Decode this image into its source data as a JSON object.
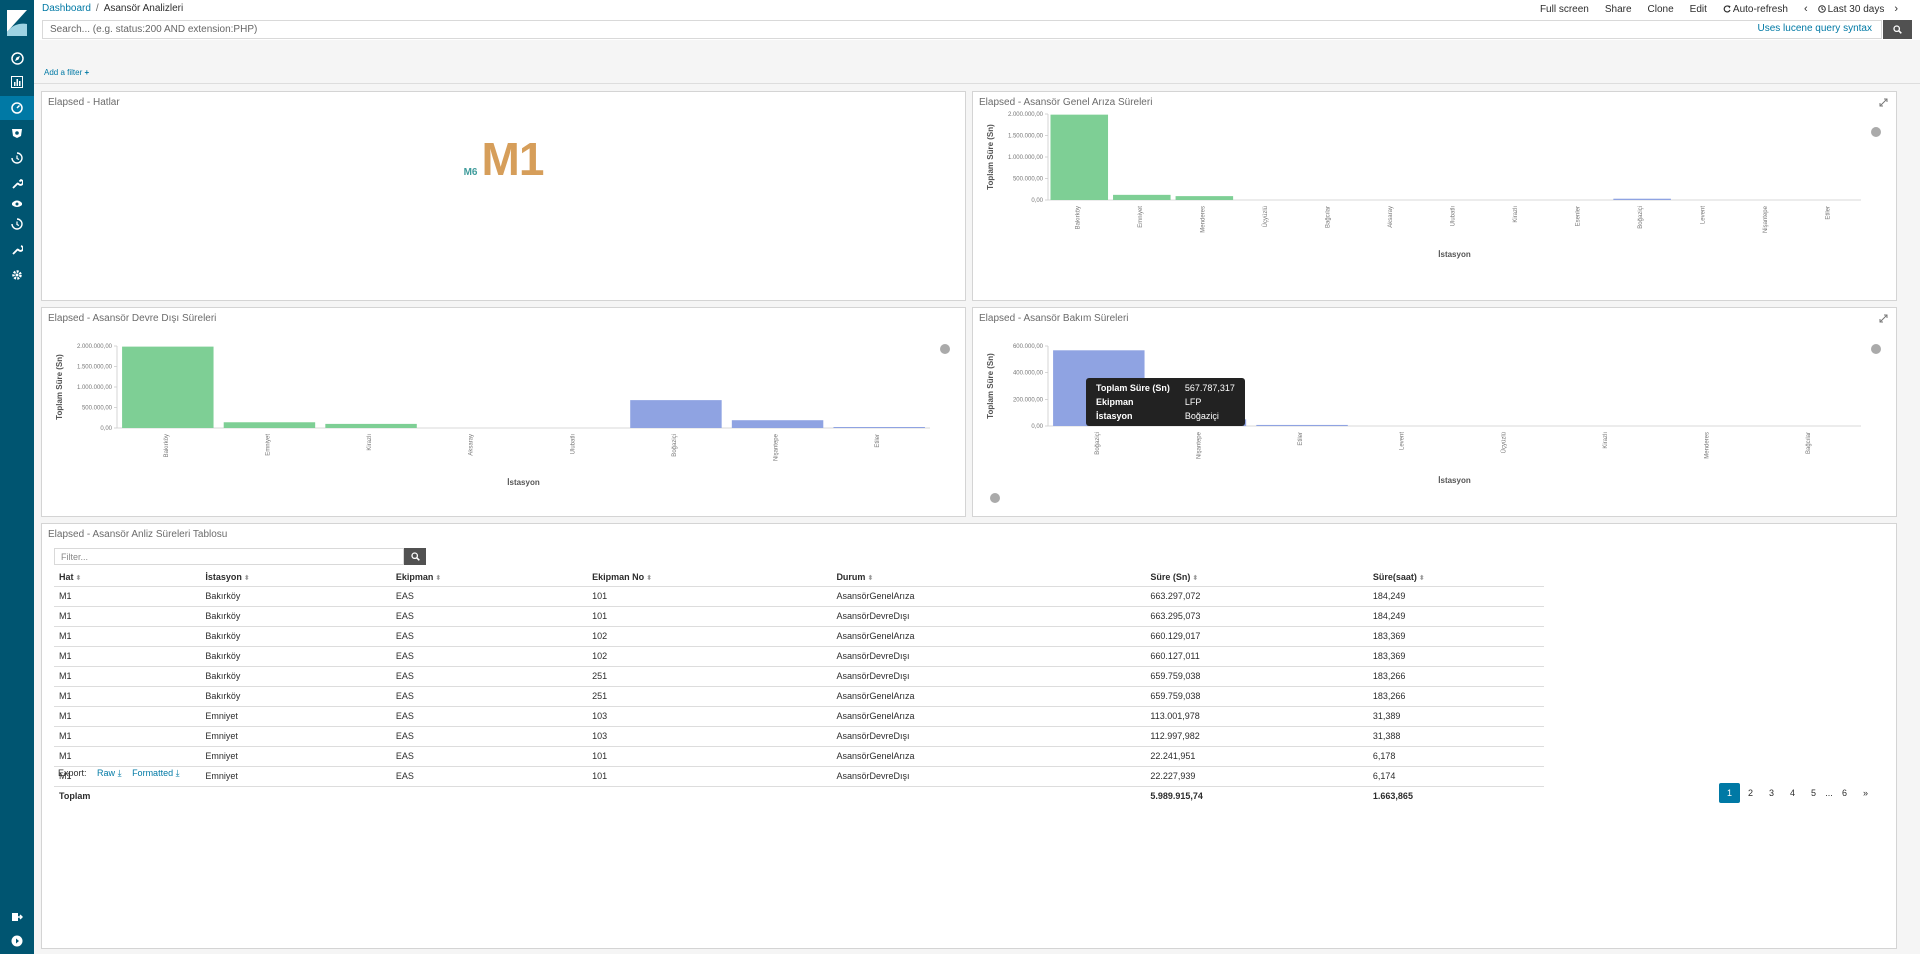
{
  "breadcrumb": {
    "root": "Dashboard",
    "current": "Asansör Analizleri"
  },
  "top_actions": {
    "fullscreen": "Full screen",
    "share": "Share",
    "clone": "Clone",
    "edit": "Edit",
    "auto_refresh": "Auto-refresh",
    "time_range": "Last 30 days"
  },
  "search": {
    "placeholder": "Search... (e.g. status:200 AND extension:PHP)",
    "lucene_link": "Uses lucene query syntax"
  },
  "add_filter": "Add a filter",
  "sidebar_icons": [
    "discover-icon",
    "visualize-icon",
    "dashboard-icon",
    "ml-icon",
    "timelion-icon",
    "devtools-icon",
    "monitoring-icon",
    "apm-icon",
    "wrench-icon",
    "settings-icon",
    "logout-icon",
    "collapse-icon"
  ],
  "panels": {
    "hatlar": {
      "title": "Elapsed - Hatlar",
      "metric_small": "M6",
      "metric_big": "M1"
    },
    "genel_ariza": {
      "title": "Elapsed - Asansör Genel Arıza Süreleri"
    },
    "devre_disi": {
      "title": "Elapsed - Asansör Devre Dışı Süreleri"
    },
    "bakim": {
      "title": "Elapsed - Asansör Bakım Süreleri",
      "tooltip": [
        {
          "key": "Toplam Süre (Sn)",
          "value": "567.787,317"
        },
        {
          "key": "Ekipman",
          "value": "LFP"
        },
        {
          "key": "İstasyon",
          "value": "Boğaziçi"
        }
      ]
    },
    "tablo": {
      "title": "Elapsed - Asansör Anliz Süreleri Tablosu"
    }
  },
  "chart_data": [
    {
      "type": "bar",
      "xlabel": "İstasyon",
      "ylabel": "Toplam Süre (Sn)",
      "ylim": [
        0,
        2000000
      ],
      "y_ticks": [
        "0,00",
        "500.000,00",
        "1.000.000,00",
        "1.500.000,00",
        "2.000.000,00"
      ],
      "categories": [
        "Bakırköy",
        "Emniyet",
        "Menderes",
        "Üçyüzlü",
        "Bağcılar",
        "Aksaray",
        "Ulubatlı",
        "Kirazlı",
        "Esenler",
        "Boğaziçi",
        "Levent",
        "Nişantepe",
        "Etiler"
      ],
      "values": [
        1985000,
        120000,
        90000,
        0,
        0,
        0,
        0,
        0,
        0,
        30000,
        0,
        0,
        0
      ],
      "colors": [
        "#7ecf95",
        "#7ecf95",
        "#7ecf95",
        "#7ecf95",
        "#7ecf95",
        "#7ecf95",
        "#7ecf95",
        "#7ecf95",
        "#7ecf95",
        "#8fa3e2",
        "#8fa3e2",
        "#8fa3e2",
        "#8fa3e2"
      ]
    },
    {
      "type": "bar",
      "xlabel": "İstasyon",
      "ylabel": "Toplam Süre (Sn)",
      "ylim": [
        0,
        2000000
      ],
      "y_ticks": [
        "0,00",
        "500.000,00",
        "1.000.000,00",
        "1.500.000,00",
        "2.000.000,00"
      ],
      "categories": [
        "Bakırköy",
        "Emniyet",
        "Kirazlı",
        "Aksaray",
        "Ulubatlı",
        "Boğaziçi",
        "Nişantepe",
        "Etiler"
      ],
      "values": [
        1985000,
        140000,
        100000,
        0,
        0,
        680000,
        190000,
        5000
      ],
      "colors": [
        "#7ecf95",
        "#7ecf95",
        "#7ecf95",
        "#7ecf95",
        "#7ecf95",
        "#8fa3e2",
        "#8fa3e2",
        "#8fa3e2"
      ]
    },
    {
      "type": "bar",
      "xlabel": "İstasyon",
      "ylabel": "Toplam Süre (Sn)",
      "ylim": [
        0,
        600000
      ],
      "y_ticks": [
        "0,00",
        "200.000,00",
        "400.000,00",
        "600.000,00"
      ],
      "categories": [
        "Boğaziçi",
        "Nişantepe",
        "Etiler",
        "Levent",
        "Üçyüzlü",
        "Kirazlı",
        "Menderes",
        "Bağcılar"
      ],
      "values": [
        567787.317,
        50000,
        8000,
        0,
        0,
        0,
        0,
        0
      ],
      "colors": [
        "#8fa3e2",
        "#8fa3e2",
        "#8fa3e2",
        "#8fa3e2",
        "#8fa3e2",
        "#7ecf95",
        "#7ecf95",
        "#7ecf95"
      ]
    }
  ],
  "table": {
    "filter_placeholder": "Filter...",
    "columns": [
      "Hat",
      "İstasyon",
      "Ekipman",
      "Ekipman No",
      "Durum",
      "Süre (Sn)",
      "Süre(saat)"
    ],
    "rows": [
      [
        "M1",
        "Bakırköy",
        "EAS",
        "101",
        "AsansörGenelArıza",
        "663.297,072",
        "184,249"
      ],
      [
        "M1",
        "Bakırköy",
        "EAS",
        "101",
        "AsansörDevreDışı",
        "663.295,073",
        "184,249"
      ],
      [
        "M1",
        "Bakırköy",
        "EAS",
        "102",
        "AsansörGenelArıza",
        "660.129,017",
        "183,369"
      ],
      [
        "M1",
        "Bakırköy",
        "EAS",
        "102",
        "AsansörDevreDışı",
        "660.127,011",
        "183,369"
      ],
      [
        "M1",
        "Bakırköy",
        "EAS",
        "251",
        "AsansörDevreDışı",
        "659.759,038",
        "183,266"
      ],
      [
        "M1",
        "Bakırköy",
        "EAS",
        "251",
        "AsansörGenelArıza",
        "659.759,038",
        "183,266"
      ],
      [
        "M1",
        "Emniyet",
        "EAS",
        "103",
        "AsansörGenelArıza",
        "113.001,978",
        "31,389"
      ],
      [
        "M1",
        "Emniyet",
        "EAS",
        "103",
        "AsansörDevreDışı",
        "112.997,982",
        "31,388"
      ],
      [
        "M1",
        "Emniyet",
        "EAS",
        "101",
        "AsansörGenelArıza",
        "22.241,951",
        "6,178"
      ],
      [
        "M1",
        "Emniyet",
        "EAS",
        "101",
        "AsansörDevreDışı",
        "22.227,939",
        "6,174"
      ]
    ],
    "total": {
      "label": "Toplam",
      "sure_sn": "5.989.915,74",
      "sure_saat": "1.663,865"
    },
    "export": {
      "label": "Export:",
      "raw": "Raw",
      "formatted": "Formatted"
    },
    "pagination": {
      "pages": [
        "1",
        "2",
        "3",
        "4",
        "5",
        "...",
        "6"
      ],
      "next": "»",
      "current": "1"
    }
  }
}
